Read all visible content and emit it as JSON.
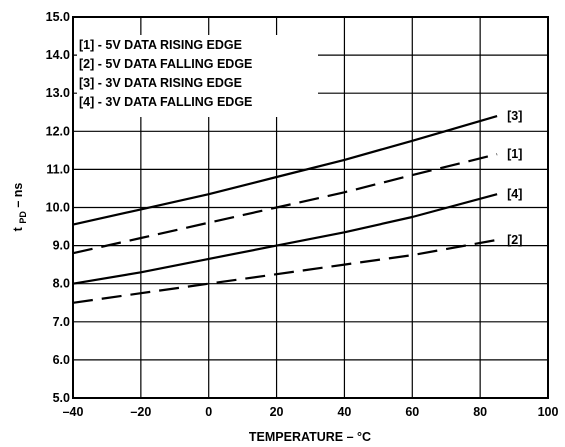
{
  "chart_data": {
    "type": "line",
    "title": "",
    "xlabel": "TEMPERATURE – °C",
    "ylabel_main": "t",
    "ylabel_sub": "PD",
    "ylabel_suffix": " – ns",
    "xlim": [
      -40,
      100
    ],
    "ylim": [
      5.0,
      15.0
    ],
    "x_ticks": [
      -40,
      -20,
      0,
      20,
      40,
      60,
      80,
      100
    ],
    "x_tick_labels": [
      "–40",
      "–20",
      "0",
      "20",
      "40",
      "60",
      "80",
      "100"
    ],
    "y_ticks": [
      5,
      6,
      7,
      8,
      9,
      10,
      11,
      12,
      13,
      14,
      15
    ],
    "y_tick_labels": [
      "5.0",
      "6.0",
      "7.0",
      "8.0",
      "9.0",
      "10.0",
      "11.0",
      "12.0",
      "13.0",
      "14.0",
      "15.0"
    ],
    "grid": true,
    "legend_position": "top-left",
    "legend": [
      "[1] - 5V DATA RISING EDGE",
      "[2] - 5V DATA FALLING EDGE",
      "[3] - 3V DATA RISING EDGE",
      "[4] - 3V DATA FALLING EDGE"
    ],
    "series": [
      {
        "name": "[3]",
        "style": "solid",
        "x": [
          -40,
          -20,
          0,
          20,
          40,
          60,
          85
        ],
        "y": [
          9.55,
          9.95,
          10.35,
          10.8,
          11.25,
          11.75,
          12.4
        ]
      },
      {
        "name": "[1]",
        "style": "dashed",
        "x": [
          -40,
          -20,
          0,
          20,
          40,
          60,
          85
        ],
        "y": [
          8.8,
          9.2,
          9.6,
          10.0,
          10.4,
          10.85,
          11.4
        ]
      },
      {
        "name": "[4]",
        "style": "solid",
        "x": [
          -40,
          -20,
          0,
          20,
          40,
          60,
          85
        ],
        "y": [
          8.0,
          8.3,
          8.65,
          9.0,
          9.35,
          9.75,
          10.35
        ]
      },
      {
        "name": "[2]",
        "style": "dashed",
        "x": [
          -40,
          -20,
          0,
          20,
          40,
          60,
          85
        ],
        "y": [
          7.5,
          7.75,
          8.0,
          8.25,
          8.5,
          8.75,
          9.15
        ]
      }
    ]
  }
}
